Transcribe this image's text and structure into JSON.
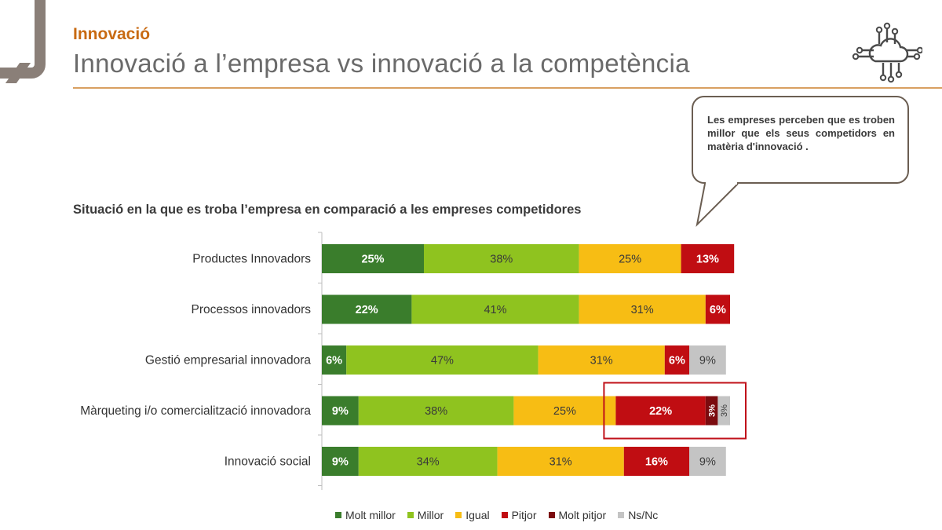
{
  "header": {
    "section": "Innovació",
    "title": "Innovació a l’empresa vs innovació a la competència"
  },
  "callout": {
    "text": "Les empreses perceben que es troben millor que els seus competidors en matèria d'innovació ."
  },
  "icons": {
    "logo": "cloud-circuit-icon"
  },
  "colors": {
    "accent": "#c86a12",
    "rule": "#d9a061",
    "highlight_box": "#c0111a"
  },
  "chart_data": {
    "type": "bar",
    "orientation": "horizontal-stacked-100",
    "title": "Situació en la que es troba l’empresa en comparació a les empreses competidores",
    "categories": [
      "Productes Innovadors",
      "Processos innovadors",
      "Gestió empresarial innovadora",
      "Màrqueting i/o comercialització innovadora",
      "Innovació social"
    ],
    "series": [
      {
        "name": "Molt millor",
        "color": "#3a7d2c",
        "values": [
          25,
          22,
          6,
          9,
          9
        ],
        "labels": [
          "25%",
          "22%",
          "6%",
          "9%",
          "9%"
        ]
      },
      {
        "name": "Millor",
        "color": "#8fc31f",
        "values": [
          38,
          41,
          47,
          38,
          34
        ],
        "labels": [
          "38%",
          "41%",
          "47%",
          "38%",
          "34%"
        ]
      },
      {
        "name": "Igual",
        "color": "#f7bd14",
        "values": [
          25,
          31,
          31,
          25,
          31
        ],
        "labels": [
          "25%",
          "31%",
          "31%",
          "25%",
          "31%"
        ]
      },
      {
        "name": "Pitjor",
        "color": "#c00d12",
        "values": [
          13,
          6,
          6,
          22,
          16
        ],
        "labels": [
          "13%",
          "6%",
          "6%",
          "22%",
          "16%"
        ]
      },
      {
        "name": "Molt pitjor",
        "color": "#7b0b0f",
        "values": [
          0,
          0,
          0,
          3,
          0
        ],
        "labels": [
          "",
          "",
          "",
          "3%",
          ""
        ]
      },
      {
        "name": "Ns/Nc",
        "color": "#c4c4c4",
        "values": [
          0,
          0,
          9,
          3,
          9
        ],
        "labels": [
          "",
          "",
          "9%",
          "3%",
          "9%"
        ]
      }
    ],
    "highlight": {
      "category": "Màrqueting i/o comercialització innovadora",
      "series": [
        "Pitjor",
        "Molt pitjor",
        "Ns/Nc"
      ]
    },
    "legend_position": "bottom",
    "grid": false
  }
}
